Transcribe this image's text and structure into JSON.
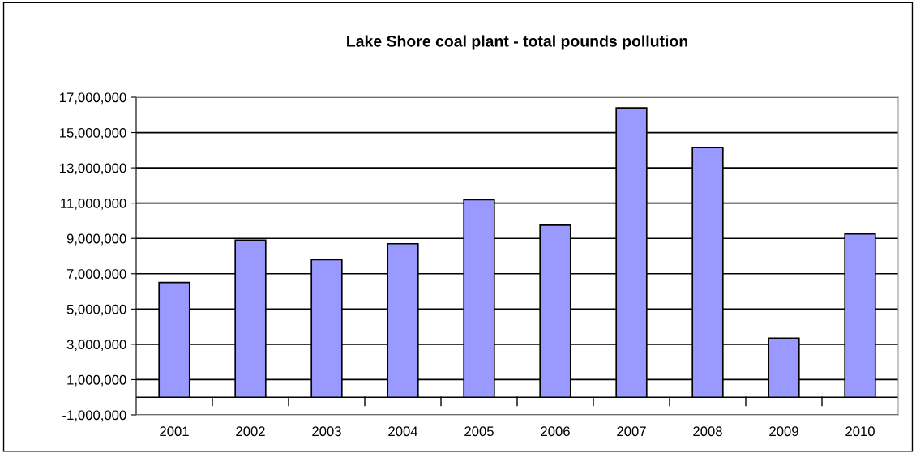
{
  "chart_data": {
    "type": "bar",
    "title": "Lake Shore coal plant - total pounds pollution",
    "categories": [
      "2001",
      "2002",
      "2003",
      "2004",
      "2005",
      "2006",
      "2007",
      "2008",
      "2009",
      "2010"
    ],
    "values": [
      6500000,
      8900000,
      7800000,
      8700000,
      11200000,
      9750000,
      16400000,
      14150000,
      3350000,
      9250000
    ],
    "color": "#9999ff",
    "ylim": [
      -1000000,
      17000000
    ],
    "yticks": [
      {
        "value": -1000000,
        "label": "-1,000,000"
      },
      {
        "value": 1000000,
        "label": "1,000,000"
      },
      {
        "value": 3000000,
        "label": "3,000,000"
      },
      {
        "value": 5000000,
        "label": "5,000,000"
      },
      {
        "value": 7000000,
        "label": "7,000,000"
      },
      {
        "value": 9000000,
        "label": "9,000,000"
      },
      {
        "value": 11000000,
        "label": "11,000,000"
      },
      {
        "value": 13000000,
        "label": "13,000,000"
      },
      {
        "value": 15000000,
        "label": "15,000,000"
      },
      {
        "value": 17000000,
        "label": "17,000,000"
      }
    ],
    "grid": "y",
    "legend": false
  }
}
